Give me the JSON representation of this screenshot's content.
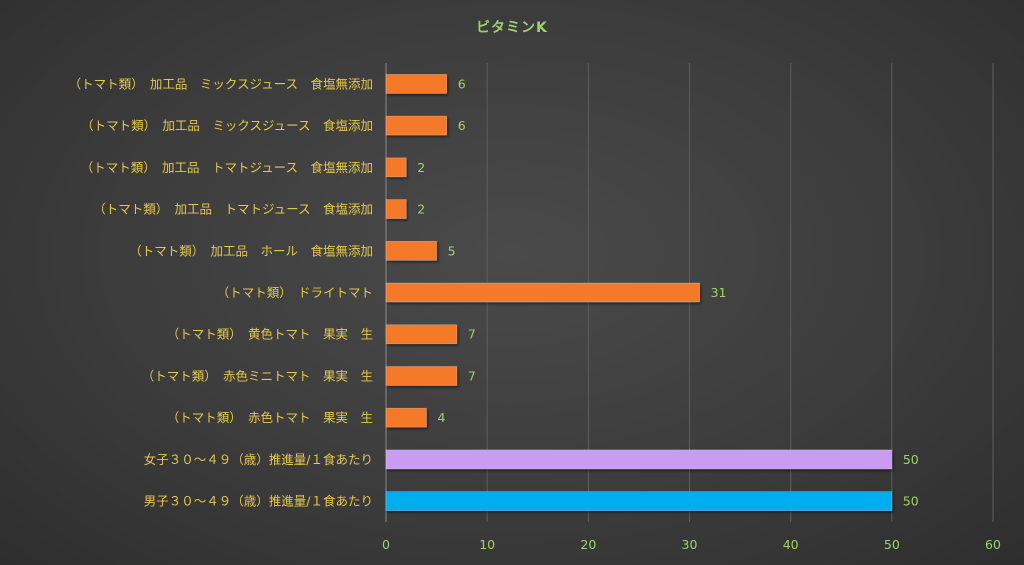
{
  "chart_data": {
    "type": "bar",
    "orientation": "horizontal",
    "title": "ビタミンK",
    "xlim": [
      0,
      60
    ],
    "x_ticks": [
      0,
      10,
      20,
      30,
      40,
      50,
      60
    ],
    "grid": "vertical",
    "categories": [
      "（トマト類）　加工品　ミックスジュース　食塩無添加",
      "（トマト類）　加工品　ミックスジュース　食塩添加",
      "（トマト類）　加工品　トマトジュース　食塩無添加",
      "（トマト類）　加工品　トマトジュース　食塩添加",
      "（トマト類）　加工品　ホール　食塩無添加",
      "（トマト類）　ドライトマト",
      "（トマト類）　黄色トマト　果実　生",
      "（トマト類）　赤色ミニトマト　果実　生",
      "（トマト類）　赤色トマト　果実　生",
      "女子３０～４９（歳）推進量/１食あたり",
      "男子３０～４９（歳）推進量/１食あたり"
    ],
    "values": [
      6,
      6,
      2,
      2,
      5,
      31,
      7,
      7,
      4,
      50,
      50
    ],
    "value_labels": [
      "6",
      "6",
      "2",
      "2",
      "5",
      "31",
      "7",
      "7",
      "4",
      "50",
      "50"
    ],
    "colors": [
      "#f47a2a",
      "#f47a2a",
      "#f47a2a",
      "#f47a2a",
      "#f47a2a",
      "#f47a2a",
      "#f47a2a",
      "#f47a2a",
      "#f47a2a",
      "#c99cf2",
      "#00aeef"
    ]
  }
}
